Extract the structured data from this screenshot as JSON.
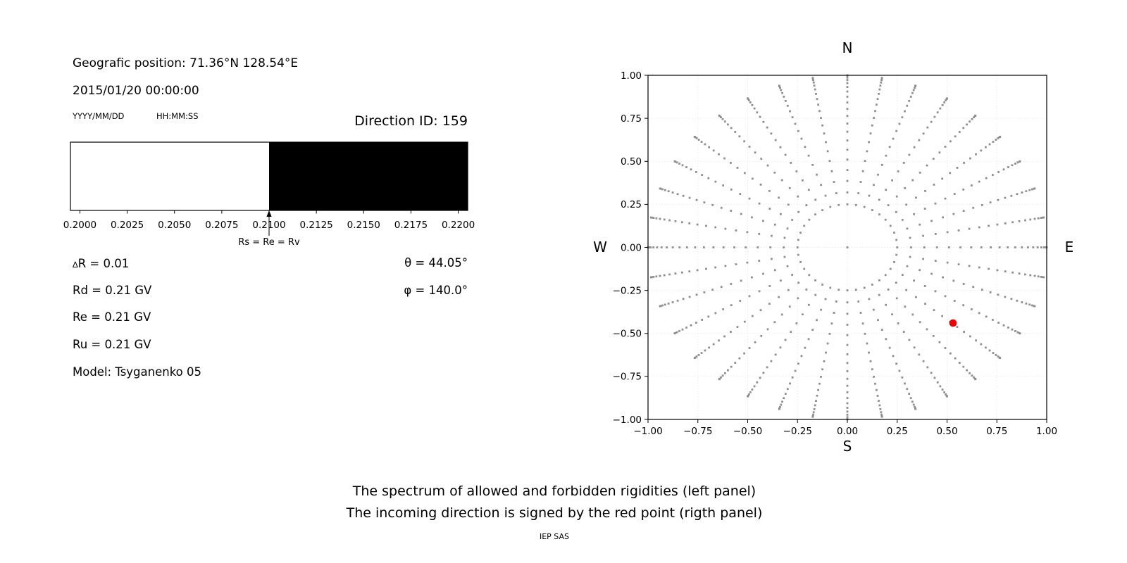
{
  "colors": {
    "background": "#ffffff",
    "text": "#000000",
    "allowed": "#ffffff",
    "forbidden": "#000000",
    "dot_gray": "#8f8f8f",
    "red_point": "#ee0000",
    "grid": "#eaeaea",
    "axis": "#000000"
  },
  "left_panel": {
    "geo_position": "Geografic position: 71.36°N 128.54°E",
    "datetime": "2015/01/20 00:00:00",
    "date_format": "YYYY/MM/DD",
    "time_format": "HH:MM:SS",
    "direction_id": "Direction ID: 159",
    "delta": {
      "symbol": "∆",
      "text": "R = 0.01"
    },
    "params": [
      "Rd = 0.21 GV",
      "Re = 0.21 GV",
      "Ru = 0.21 GV",
      "Model: Tsyganenko 05"
    ],
    "theta": "θ = 44.05°",
    "phi": "φ = 140.0°"
  },
  "captions": {
    "line1": "The spectrum of allowed and forbidden rigidities (left panel)",
    "line2": "The incoming direction is signed by the red point (rigth panel)",
    "credit": "IEP SAS"
  },
  "chart_data": [
    {
      "type": "bar",
      "title": "",
      "xlabel": "",
      "xlim": [
        0.1995,
        0.2205
      ],
      "xticks": {
        "values": [
          0.2,
          0.2025,
          0.205,
          0.2075,
          0.21,
          0.2125,
          0.215,
          0.2175,
          0.22
        ],
        "labels": [
          "0.2000",
          "0.2025",
          "0.2050",
          "0.2075",
          "0.2100",
          "0.2125",
          "0.2150",
          "0.2175",
          "0.2200"
        ]
      },
      "segments": [
        {
          "name": "allowed rigidities",
          "range": [
            0.1995,
            0.21
          ],
          "color": "#ffffff"
        },
        {
          "name": "forbidden rigidities",
          "range": [
            0.21,
            0.2205
          ],
          "color": "#000000"
        }
      ],
      "annotation": {
        "x": 0.21,
        "label": "Rs = Re = Rv"
      }
    },
    {
      "type": "scatter",
      "xlim": [
        -1.0,
        1.0
      ],
      "ylim": [
        -1.0,
        1.0
      ],
      "grid": true,
      "ticks": {
        "values": [
          -1.0,
          -0.75,
          -0.5,
          -0.25,
          0.0,
          0.25,
          0.5,
          0.75,
          1.0
        ],
        "labels": [
          "−1.00",
          "−0.75",
          "−0.50",
          "−0.25",
          "0.00",
          "0.25",
          "0.50",
          "0.75",
          "1.00"
        ]
      },
      "compass": {
        "n": "N",
        "s": "S",
        "w": "W",
        "e": "E"
      },
      "rays": {
        "count": 36,
        "angle_step_deg": 10,
        "r_inner": 0.25,
        "r_outer": 1.0,
        "points_per_ray": 20,
        "tip_cluster_power": 1.8,
        "center_dot": true
      },
      "red_point": {
        "x": 0.53,
        "y": -0.44
      }
    }
  ]
}
